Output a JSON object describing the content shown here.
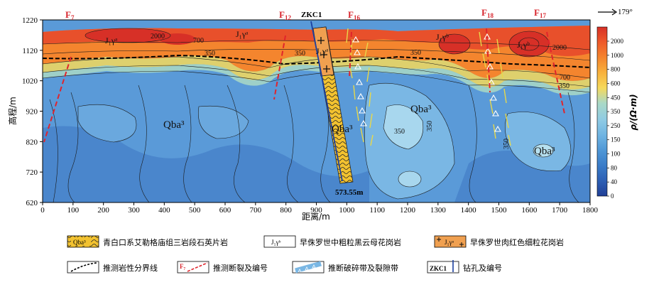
{
  "figure": {
    "y_axis_label": "高程/m",
    "x_axis_label": "距离/m",
    "y_ticks": [
      "1220",
      "1120",
      "1020",
      "920",
      "820",
      "720",
      "620"
    ],
    "x_ticks": [
      "0",
      "100",
      "200",
      "300",
      "400",
      "500",
      "600",
      "700",
      "800",
      "900",
      "1000",
      "1100",
      "1200",
      "1300",
      "1400",
      "1500",
      "1600",
      "1700",
      "1800"
    ],
    "azimuth": "179°"
  },
  "colorbar": {
    "title": "ρ/(Ω·m)",
    "ticks": [
      "2000",
      "1000",
      "800",
      "600",
      "450",
      "350",
      "250",
      "150",
      "100",
      "80",
      "40",
      "0"
    ],
    "colors": [
      "#d73027",
      "#ee5a2a",
      "#f4852e",
      "#f8b13c",
      "#f6d95b",
      "#d9e58a",
      "#aad9c6",
      "#8fcbe4",
      "#6fb4e2",
      "#4f97d6",
      "#3a7cc8",
      "#2d5fb4",
      "#203f96"
    ]
  },
  "labels": {
    "faults": [
      "F7",
      "F12",
      "F16",
      "F18",
      "F17"
    ],
    "borehole": "ZKC1",
    "borehole_depth": "573.55m",
    "units": [
      "J₁γᵃ",
      "J₁γᵃ",
      "J₁γᵃ",
      "J₁γᵇ",
      "J₁γᵇ",
      "Qba³",
      "Qba³",
      "Qba³",
      "Qba³"
    ],
    "isolines": [
      "2000",
      "700",
      "350",
      "350",
      "350",
      "350",
      "350",
      "350",
      "2000",
      "700",
      "350"
    ]
  },
  "legend": {
    "items": [
      {
        "swatch": "Qba³",
        "text": "青白口系艾勒格庙组三岩段石英片岩"
      },
      {
        "swatch": "J₁γᵇ",
        "text": "早侏罗世中粗粒黑云母花岗岩"
      },
      {
        "swatch": "J₁γᵃ",
        "text": "早侏罗世肉红色细粒花岗岩"
      },
      {
        "swatch": "",
        "text": "推测岩性分界线"
      },
      {
        "swatch": "F₇",
        "text": "推测断裂及编号"
      },
      {
        "swatch": "",
        "text": "推断破碎带及裂隙带"
      },
      {
        "swatch": "ZKC1",
        "text": "钻孔及编号"
      }
    ]
  }
}
